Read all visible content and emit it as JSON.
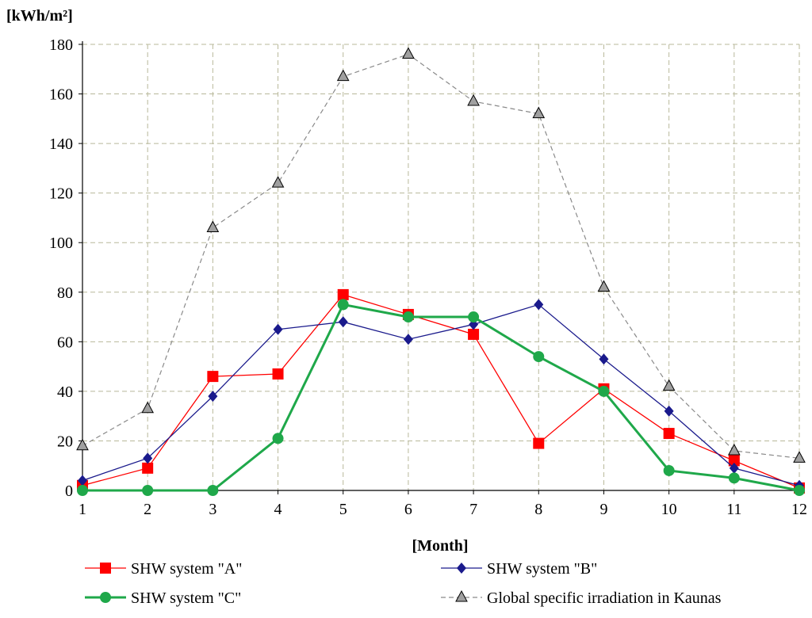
{
  "chart_data": {
    "type": "line",
    "title": "",
    "xlabel": "[Month]",
    "ylabel": "[kWh/m²]",
    "x": [
      1,
      2,
      3,
      4,
      5,
      6,
      7,
      8,
      9,
      10,
      11,
      12
    ],
    "ylim": [
      0,
      180
    ],
    "yticks": [
      0,
      20,
      40,
      60,
      80,
      100,
      120,
      140,
      160,
      180
    ],
    "grid": true,
    "legend_position": "bottom",
    "series": [
      {
        "name": "SHW system \"A\"",
        "color": "#ff0000",
        "marker": "square",
        "dash": "solid",
        "values": [
          2,
          9,
          46,
          47,
          79,
          71,
          63,
          19,
          41,
          23,
          12,
          1
        ]
      },
      {
        "name": "SHW system \"B\"",
        "color": "#1a1a8c",
        "marker": "diamond",
        "dash": "solid",
        "values": [
          4,
          13,
          38,
          65,
          68,
          61,
          67,
          75,
          53,
          32,
          9,
          2
        ]
      },
      {
        "name": "SHW system \"C\"",
        "color": "#1fa84a",
        "marker": "circle",
        "dash": "solid",
        "values": [
          0,
          0,
          0,
          21,
          75,
          70,
          70,
          54,
          40,
          8,
          5,
          0
        ]
      },
      {
        "name": "Global specific irradiation in Kaunas",
        "color": "#8a8a8a",
        "marker": "triangle",
        "dash": "dashed",
        "values": [
          18,
          33,
          106,
          124,
          167,
          176,
          157,
          152,
          82,
          42,
          16,
          13
        ]
      }
    ]
  }
}
